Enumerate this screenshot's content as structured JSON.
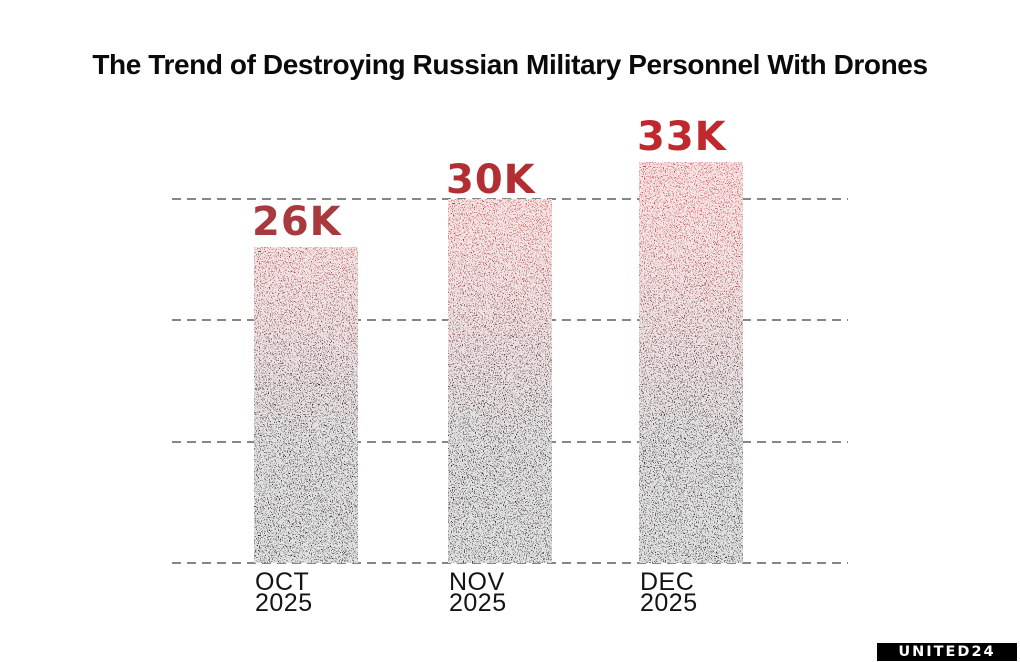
{
  "title": "The Trend of Destroying Russian Military Personnel With Drones",
  "chart_data": {
    "type": "bar",
    "title": "The Trend of Destroying Russian Military Personnel With Drones",
    "categories": [
      "OCT 2025",
      "NOV 2025",
      "DEC 2025"
    ],
    "category_lines": [
      [
        "OCT",
        "2025"
      ],
      [
        "NOV",
        "2025"
      ],
      [
        "DEC",
        "2025"
      ]
    ],
    "values": [
      26000,
      30000,
      33000
    ],
    "value_labels": [
      "26K",
      "30K",
      "33K"
    ],
    "value_label_colors": [
      "#a8393d",
      "#b22e33",
      "#c1282e"
    ],
    "xlabel": "",
    "ylabel": "",
    "ylim": [
      0,
      33000
    ],
    "gridlines": [
      0,
      10000,
      20000,
      30000
    ],
    "grid_style": "dashed",
    "grid_on": true,
    "legend": null,
    "bar_texture": "grunge red-to-black gradient with white speckles",
    "bar_gradient_top": "#c62b2f",
    "bar_gradient_bottom": "#131011"
  },
  "branding": {
    "logo_text": "UNITED24",
    "logo_bg": "#000000",
    "logo_fg": "#ffffff"
  },
  "colors": {
    "background": "#ffffff",
    "gridline": "#868686",
    "title": "#0a0a0a",
    "month_label": "#141414"
  }
}
